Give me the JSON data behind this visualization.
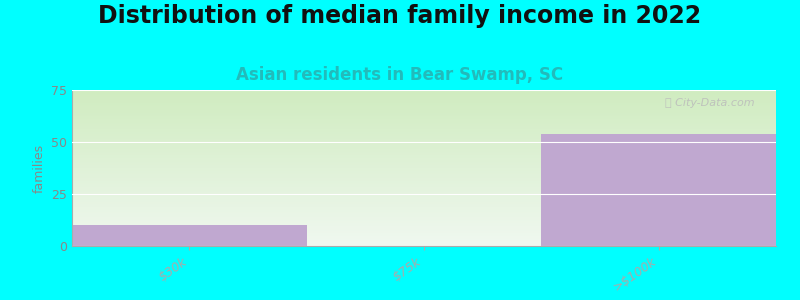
{
  "title": "Distribution of median family income in 2022",
  "subtitle": "Asian residents in Bear Swamp, SC",
  "categories": [
    "$30k",
    "$75k",
    ">$100k"
  ],
  "values": [
    10,
    0,
    54
  ],
  "bar_color": "#c0a8d0",
  "background_color": "#00ffff",
  "plot_bg_gradient_top": "#f0f8f0",
  "plot_bg_gradient_bottom": "#d0ecc0",
  "ylabel": "families",
  "ylim": [
    0,
    75
  ],
  "yticks": [
    0,
    25,
    50,
    75
  ],
  "watermark": "ⓘ City-Data.com",
  "title_fontsize": 17,
  "subtitle_fontsize": 12,
  "subtitle_color": "#22bbbb",
  "tick_label_color": "#888888",
  "bar_width": 1.0
}
